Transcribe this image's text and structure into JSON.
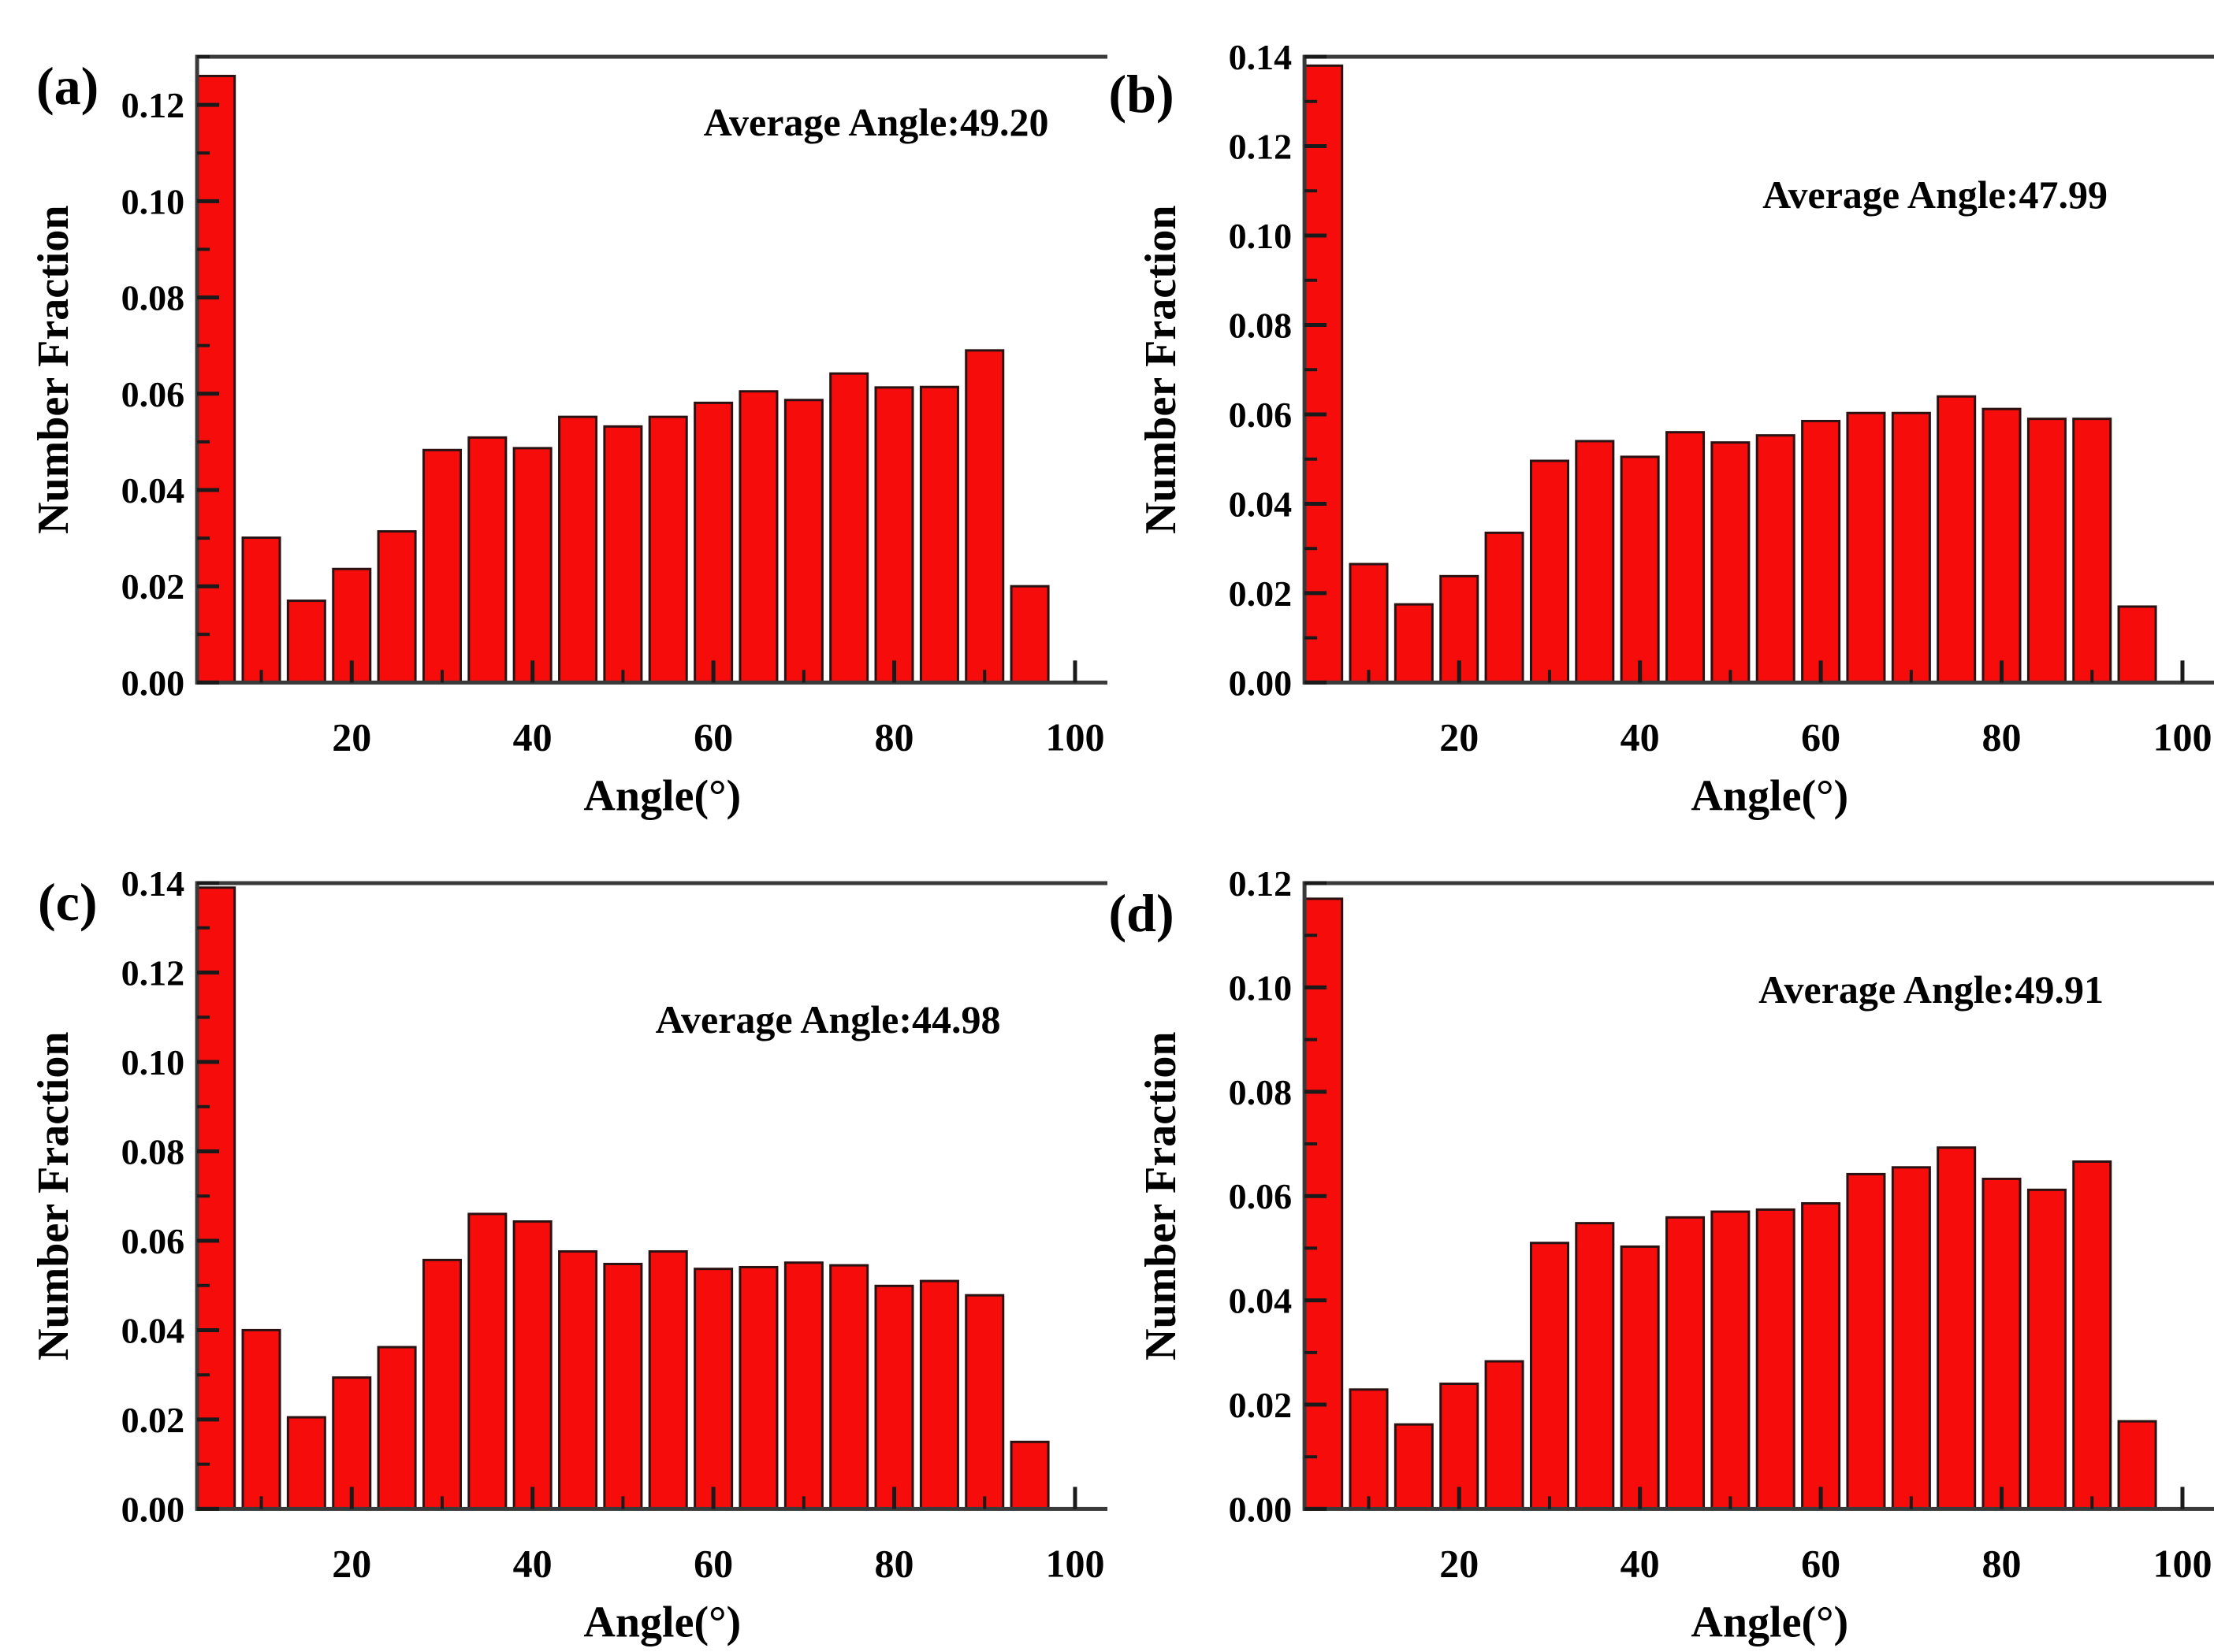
{
  "colors": {
    "bar_fill": "#f70c0c",
    "bar_edge": "#2b1212",
    "axis": "#3a3a3a",
    "tick": "#1a1a1a",
    "text": "#000000",
    "background": "#ffffff"
  },
  "chart_data": [
    {
      "type": "bar",
      "panel_label": "(a)",
      "annotation": "Average Angle:49.20",
      "xlabel": "Angle(°)",
      "ylabel": "Number Fraction",
      "x": [
        5,
        10,
        15,
        20,
        25,
        30,
        35,
        40,
        45,
        50,
        55,
        60,
        65,
        70,
        75,
        80,
        85,
        90,
        95
      ],
      "values": [
        0.126,
        0.0301,
        0.017,
        0.0236,
        0.0314,
        0.0483,
        0.0509,
        0.0487,
        0.0552,
        0.0532,
        0.0552,
        0.0581,
        0.0605,
        0.0587,
        0.0642,
        0.0613,
        0.0614,
        0.069,
        0.02
      ],
      "bar_width": 4.1,
      "xlim": [
        2.9,
        105.8
      ],
      "ylim": [
        0,
        0.13
      ],
      "xticks": [
        20,
        40,
        60,
        80,
        100
      ],
      "xminorticks": [
        10,
        30,
        50,
        70,
        90
      ],
      "yticks": [
        0,
        0.02,
        0.04,
        0.06,
        0.08,
        0.1,
        0.12
      ],
      "yminorticks": [
        0.01,
        0.03,
        0.05,
        0.07,
        0.09,
        0.11,
        0.13
      ],
      "grid": false
    },
    {
      "type": "bar",
      "panel_label": "(b)",
      "annotation": "Average Angle:47.99",
      "xlabel": "Angle(°)",
      "ylabel": "Number Fraction",
      "x": [
        5,
        10,
        15,
        20,
        25,
        30,
        35,
        40,
        45,
        50,
        55,
        60,
        65,
        70,
        75,
        80,
        85,
        90,
        95
      ],
      "values": [
        0.138,
        0.0265,
        0.0175,
        0.0238,
        0.0335,
        0.0496,
        0.054,
        0.0505,
        0.056,
        0.0537,
        0.0553,
        0.0585,
        0.0603,
        0.0603,
        0.064,
        0.0612,
        0.059,
        0.059,
        0.017
      ],
      "bar_width": 4.1,
      "xlim": [
        2.9,
        105.8
      ],
      "ylim": [
        0,
        0.14
      ],
      "xticks": [
        20,
        40,
        60,
        80,
        100
      ],
      "xminorticks": [
        10,
        30,
        50,
        70,
        90
      ],
      "yticks": [
        0,
        0.02,
        0.04,
        0.06,
        0.08,
        0.1,
        0.12,
        0.14
      ],
      "yminorticks": [
        0.01,
        0.03,
        0.05,
        0.07,
        0.09,
        0.11,
        0.13
      ],
      "grid": false
    },
    {
      "type": "bar",
      "panel_label": "(c)",
      "annotation": "Average Angle:44.98",
      "xlabel": "Angle(°)",
      "ylabel": "Number Fraction",
      "x": [
        5,
        10,
        15,
        20,
        25,
        30,
        35,
        40,
        45,
        50,
        55,
        60,
        65,
        70,
        75,
        80,
        85,
        90,
        95
      ],
      "values": [
        0.139,
        0.04,
        0.0205,
        0.0294,
        0.0362,
        0.0557,
        0.066,
        0.0643,
        0.0576,
        0.0548,
        0.0576,
        0.0537,
        0.0541,
        0.0551,
        0.0545,
        0.0499,
        0.051,
        0.0478,
        0.015
      ],
      "bar_width": 4.1,
      "xlim": [
        2.9,
        105.8
      ],
      "ylim": [
        0,
        0.14
      ],
      "xticks": [
        20,
        40,
        60,
        80,
        100
      ],
      "xminorticks": [
        10,
        30,
        50,
        70,
        90
      ],
      "yticks": [
        0,
        0.02,
        0.04,
        0.06,
        0.08,
        0.1,
        0.12,
        0.14
      ],
      "yminorticks": [
        0.01,
        0.03,
        0.05,
        0.07,
        0.09,
        0.11,
        0.13
      ],
      "grid": false
    },
    {
      "type": "bar",
      "panel_label": "(d)",
      "annotation": "Average Angle:49.91",
      "xlabel": "Angle(°)",
      "ylabel": "Number Fraction",
      "x": [
        5,
        10,
        15,
        20,
        25,
        30,
        35,
        40,
        45,
        50,
        55,
        60,
        65,
        70,
        75,
        80,
        85,
        90,
        95
      ],
      "values": [
        0.117,
        0.0229,
        0.0162,
        0.024,
        0.0283,
        0.051,
        0.0548,
        0.0503,
        0.0559,
        0.057,
        0.0574,
        0.0586,
        0.0642,
        0.0655,
        0.0693,
        0.0633,
        0.0612,
        0.0666,
        0.0168
      ],
      "bar_width": 4.1,
      "xlim": [
        2.9,
        105.8
      ],
      "ylim": [
        0,
        0.12
      ],
      "xticks": [
        20,
        40,
        60,
        80,
        100
      ],
      "xminorticks": [
        10,
        30,
        50,
        70,
        90
      ],
      "yticks": [
        0,
        0.02,
        0.04,
        0.06,
        0.08,
        0.1,
        0.12
      ],
      "yminorticks": [
        0.01,
        0.03,
        0.05,
        0.07,
        0.09,
        0.11
      ],
      "grid": false
    }
  ]
}
